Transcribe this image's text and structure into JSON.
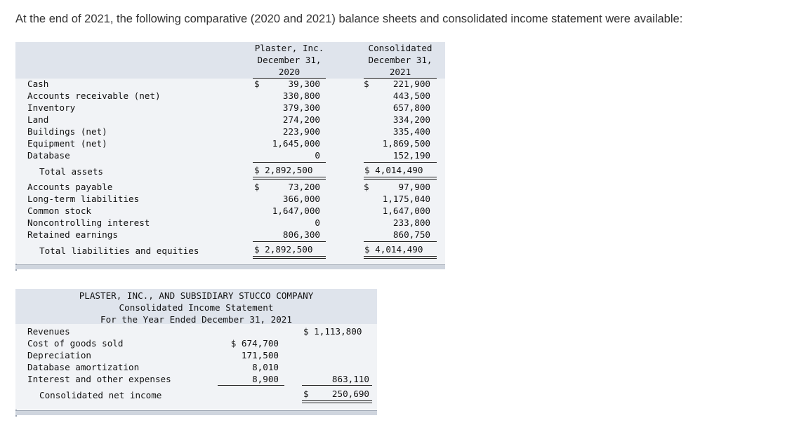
{
  "intro": "At the end of 2021, the following comparative (2020 and 2021) balance sheets and consolidated income statement were available:",
  "balance": {
    "col1_header": [
      "Plaster, Inc.",
      "December 31,",
      "2020"
    ],
    "col2_header": [
      "Consolidated",
      "December 31,",
      "2021"
    ],
    "rows": [
      {
        "label": "Cash",
        "v1": "39,300",
        "v2": "221,900",
        "d1": "$",
        "d2": "$"
      },
      {
        "label": "Accounts receivable (net)",
        "v1": "330,800",
        "v2": "443,500"
      },
      {
        "label": "Inventory",
        "v1": "379,300",
        "v2": "657,800"
      },
      {
        "label": "Land",
        "v1": "274,200",
        "v2": "334,200"
      },
      {
        "label": "Buildings (net)",
        "v1": "223,900",
        "v2": "335,400"
      },
      {
        "label": "Equipment (net)",
        "v1": "1,645,000",
        "v2": "1,869,500"
      },
      {
        "label": "Database",
        "v1": "0",
        "v2": "152,190"
      }
    ],
    "total_assets": {
      "label": "Total assets",
      "v1": "$ 2,892,500",
      "v2": "$ 4,014,490"
    },
    "rows2": [
      {
        "label": "Accounts payable",
        "v1": "73,200",
        "v2": "97,900",
        "d1": "$",
        "d2": "$"
      },
      {
        "label": "Long-term liabilities",
        "v1": "366,000",
        "v2": "1,175,040"
      },
      {
        "label": "Common stock",
        "v1": "1,647,000",
        "v2": "1,647,000"
      },
      {
        "label": "Noncontrolling interest",
        "v1": "0",
        "v2": "233,800"
      },
      {
        "label": "Retained earnings",
        "v1": "806,300",
        "v2": "860,750"
      }
    ],
    "total_le": {
      "label": "Total liabilities and equities",
      "v1": "$ 2,892,500",
      "v2": "$ 4,014,490"
    }
  },
  "income": {
    "title": [
      "PLASTER, INC., AND SUBSIDIARY STUCCO COMPANY",
      "Consolidated Income Statement",
      "For the Year Ended December 31, 2021"
    ],
    "revenues": {
      "label": "Revenues",
      "value": "$ 1,113,800"
    },
    "expenses": [
      {
        "label": "Cost of goods sold",
        "value": "$ 674,700"
      },
      {
        "label": "Depreciation",
        "value": "171,500"
      },
      {
        "label": "Database amortization",
        "value": "8,010"
      },
      {
        "label": "Interest and other expenses",
        "value": "8,900"
      }
    ],
    "total_expenses": "863,110",
    "net_income": {
      "label": "Consolidated net income",
      "dollar": "$",
      "value": "250,690"
    }
  }
}
